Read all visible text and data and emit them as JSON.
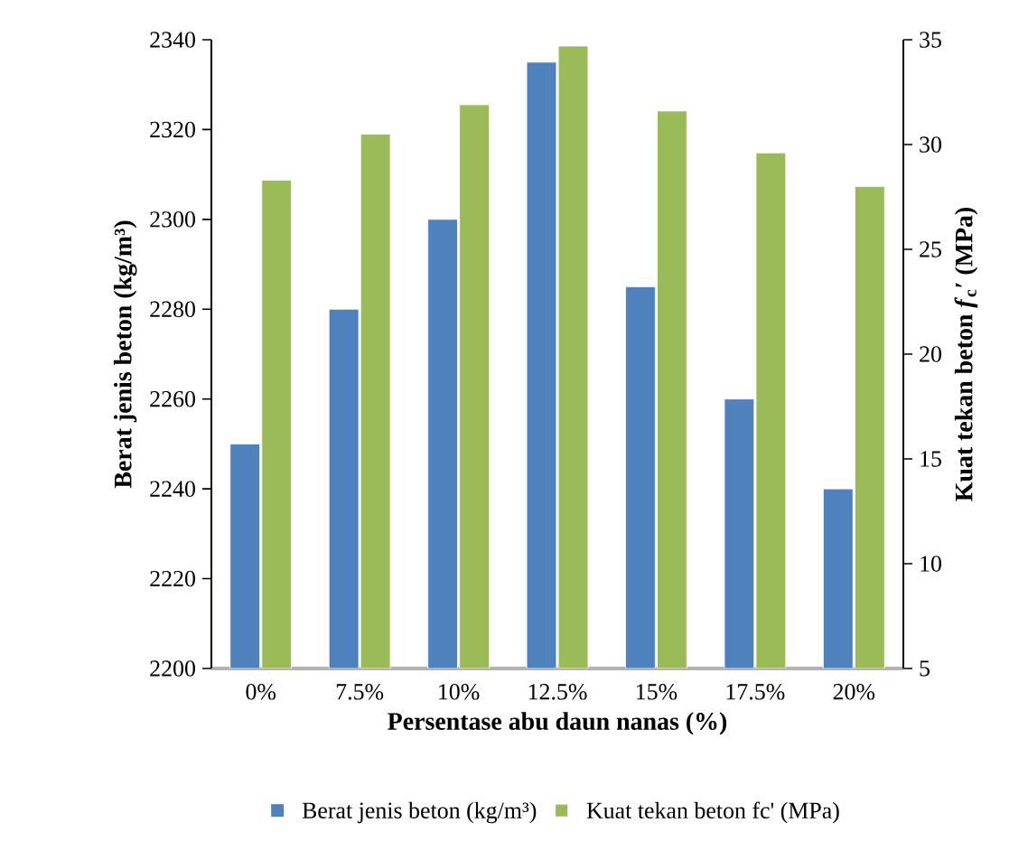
{
  "chart_data": {
    "type": "bar",
    "xlabel": "Persentase abu daun nanas (%)",
    "ylabel": "Berat jenis beton (kg/m³)",
    "y2label": "Kuat tekan beton *f*$_{c}$′ (MPa)",
    "categories": [
      "0%",
      "7.5%",
      "10%",
      "12.5%",
      "15%",
      "17.5%",
      "20%"
    ],
    "series": [
      {
        "name": "Berat jenis beton (kg/m³)",
        "color": "#4f81bd",
        "values": [
          2250,
          2280,
          2300,
          2335,
          2285,
          2260,
          2240
        ]
      },
      {
        "name": "Kuat tekan beton fc' (MPa)",
        "color": "#9bbb59",
        "axis": "y2",
        "values": [
          28.3,
          30.5,
          31.9,
          34.7,
          31.6,
          29.6,
          28.0
        ]
      }
    ],
    "ylim": [
      2200,
      2340
    ],
    "yticks": [
      2200,
      2220,
      2240,
      2260,
      2280,
      2300,
      2320,
      2340
    ],
    "y2lim": [
      5,
      35
    ],
    "y2ticks": [
      5,
      10,
      15,
      20,
      25,
      30,
      35
    ],
    "grid": false,
    "legend": "bottom"
  }
}
